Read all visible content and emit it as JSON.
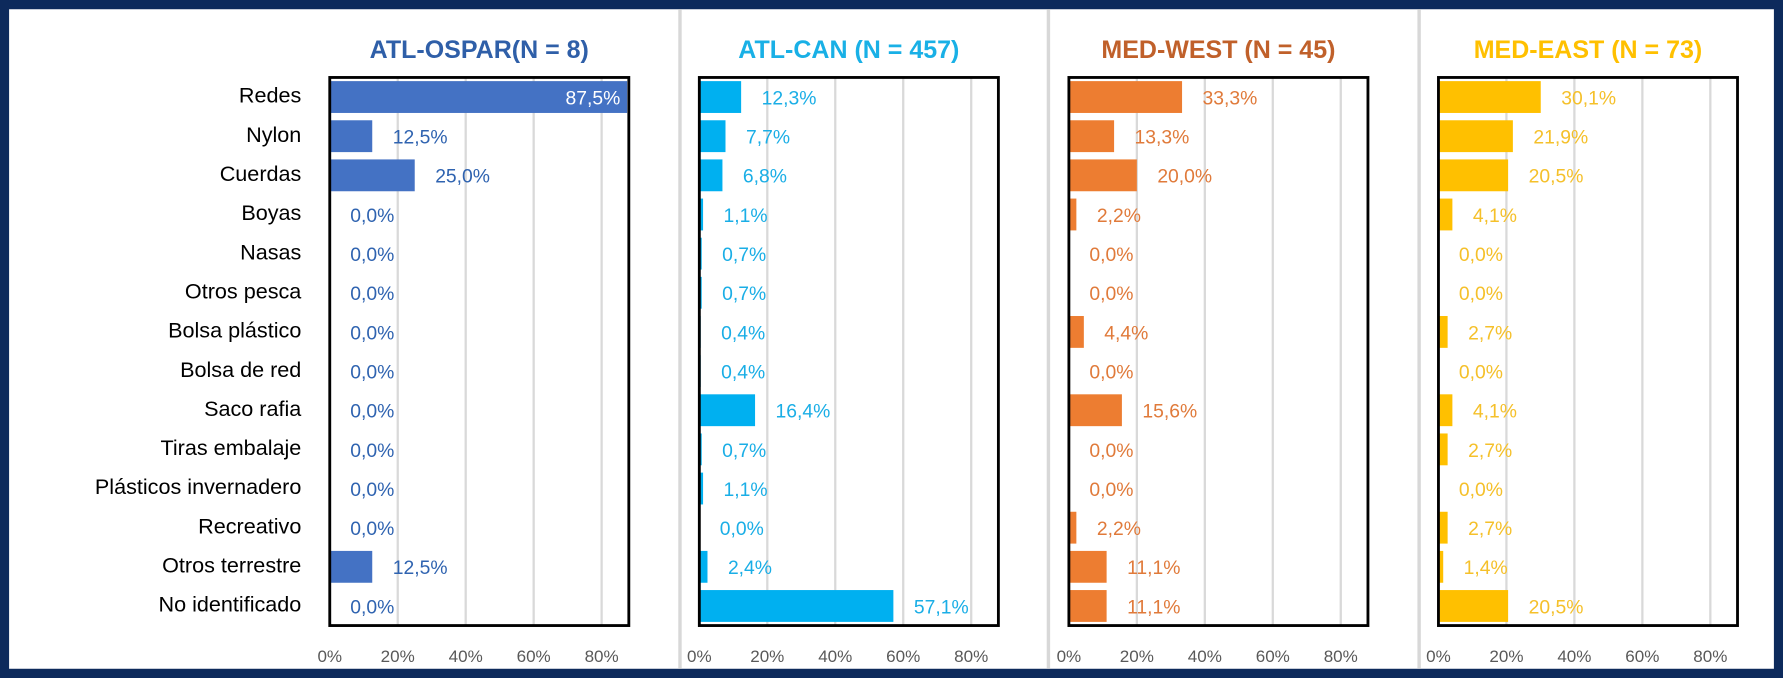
{
  "chart_data": [
    {
      "type": "bar",
      "orientation": "horizontal",
      "title": "ATL-OSPAR(N = 8)",
      "title_color": "#2f5fa8",
      "color": "#4472c4",
      "label_color": "#2f63b0",
      "categories": [
        "Redes",
        "Nylon",
        "Cuerdas",
        "Boyas",
        "Nasas",
        "Otros pesca",
        "Bolsa plástico",
        "Bolsa de red",
        "Saco rafia",
        "Tiras embalaje",
        "Plásticos invernadero",
        "Recreativo",
        "Otros terrestre",
        "No identificado"
      ],
      "values": [
        87.5,
        12.5,
        25.0,
        0.0,
        0.0,
        0.0,
        0.0,
        0.0,
        0.0,
        0.0,
        0.0,
        0.0,
        12.5,
        0.0
      ],
      "value_labels": [
        "87,5%",
        "12,5%",
        "25,0%",
        "0,0%",
        "0,0%",
        "0,0%",
        "0,0%",
        "0,0%",
        "0,0%",
        "0,0%",
        "0,0%",
        "0,0%",
        "12,5%",
        "0,0%"
      ],
      "xlim": [
        0,
        88
      ],
      "xticks": [
        {
          "value": 0,
          "label": "0%"
        },
        {
          "value": 20,
          "label": "20%"
        },
        {
          "value": 40,
          "label": "40%"
        },
        {
          "value": 60,
          "label": "60%"
        },
        {
          "value": 80,
          "label": "80%"
        }
      ],
      "grid": true
    },
    {
      "type": "bar",
      "orientation": "horizontal",
      "title": "ATL-CAN (N = 457)",
      "title_color": "#19b0e6",
      "color": "#00b0f0",
      "label_color": "#1aaee6",
      "values": [
        12.3,
        7.7,
        6.8,
        1.1,
        0.7,
        0.7,
        0.4,
        0.4,
        16.4,
        0.7,
        1.1,
        0.0,
        2.4,
        57.1
      ],
      "value_labels": [
        "12,3%",
        "7,7%",
        "6,8%",
        "1,1%",
        "0,7%",
        "0,7%",
        "0,4%",
        "0,4%",
        "16,4%",
        "0,7%",
        "1,1%",
        "0,0%",
        "2,4%",
        "57,1%"
      ],
      "xlim": [
        0,
        88
      ],
      "xticks": [
        {
          "value": 0,
          "label": "0%"
        },
        {
          "value": 20,
          "label": "20%"
        },
        {
          "value": 40,
          "label": "40%"
        },
        {
          "value": 60,
          "label": "60%"
        },
        {
          "value": 80,
          "label": "80%"
        }
      ],
      "grid": true
    },
    {
      "type": "bar",
      "orientation": "horizontal",
      "title": "MED-WEST (N = 45)",
      "title_color": "#c0602a",
      "color": "#ed7d31",
      "label_color": "#e07a3a",
      "values": [
        33.3,
        13.3,
        20.0,
        2.2,
        0.0,
        0.0,
        4.4,
        0.0,
        15.6,
        0.0,
        0.0,
        2.2,
        11.1,
        11.1
      ],
      "value_labels": [
        "33,3%",
        "13,3%",
        "20,0%",
        "2,2%",
        "0,0%",
        "0,0%",
        "4,4%",
        "0,0%",
        "15,6%",
        "0,0%",
        "0,0%",
        "2,2%",
        "11,1%",
        "11,1%"
      ],
      "xlim": [
        0,
        88
      ],
      "xticks": [
        {
          "value": 0,
          "label": "0%"
        },
        {
          "value": 20,
          "label": "20%"
        },
        {
          "value": 40,
          "label": "40%"
        },
        {
          "value": 60,
          "label": "60%"
        },
        {
          "value": 80,
          "label": "80%"
        }
      ],
      "grid": true
    },
    {
      "type": "bar",
      "orientation": "horizontal",
      "title": "MED-EAST (N = 73)",
      "title_color": "#ffc000",
      "color": "#ffc000",
      "label_color": "#f5c02a",
      "values": [
        30.1,
        21.9,
        20.5,
        4.1,
        0.0,
        0.0,
        2.7,
        0.0,
        4.1,
        2.7,
        0.0,
        2.7,
        1.4,
        20.5
      ],
      "value_labels": [
        "30,1%",
        "21,9%",
        "20,5%",
        "4,1%",
        "0,0%",
        "0,0%",
        "2,7%",
        "0,0%",
        "4,1%",
        "2,7%",
        "0,0%",
        "2,7%",
        "1,4%",
        "20,5%"
      ],
      "xlim": [
        0,
        88
      ],
      "xticks": [
        {
          "value": 0,
          "label": "0%"
        },
        {
          "value": 20,
          "label": "20%"
        },
        {
          "value": 40,
          "label": "40%"
        },
        {
          "value": 60,
          "label": "60%"
        },
        {
          "value": 80,
          "label": "80%"
        }
      ],
      "grid": true
    }
  ]
}
